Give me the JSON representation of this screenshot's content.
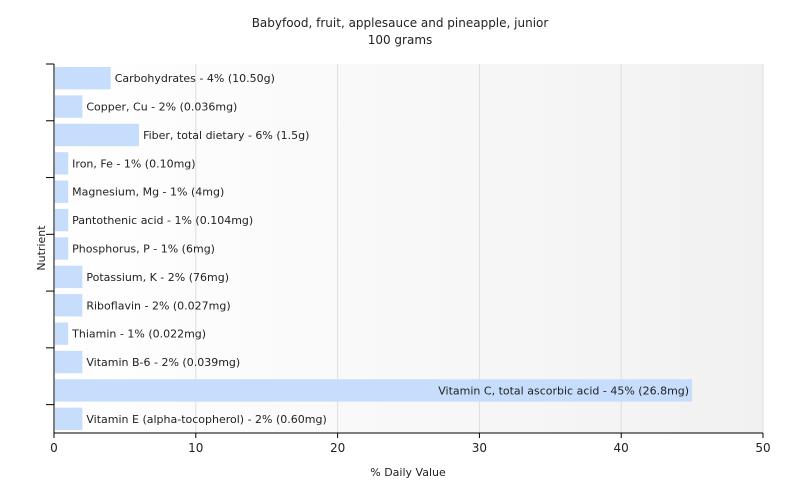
{
  "chart_data": {
    "type": "bar",
    "orientation": "horizontal",
    "title": "Babyfood, fruit, applesauce and pineapple, junior",
    "subtitle": "100 grams",
    "xlabel": "% Daily Value",
    "ylabel": "Nutrient",
    "xlim": [
      0,
      50
    ],
    "xticks": [
      "0",
      "10",
      "20",
      "30",
      "40",
      "50"
    ],
    "grid": true,
    "legend": "none",
    "colors": {
      "bar": "#c6defb",
      "grid": "#dddddd",
      "axis": "#000000",
      "plot_bg_start": "#ffffff",
      "plot_bg_end": "#f1f1f1"
    },
    "categories": [
      "Carbohydrates",
      "Copper, Cu",
      "Fiber, total dietary",
      "Iron, Fe",
      "Magnesium, Mg",
      "Pantothenic acid",
      "Phosphorus, P",
      "Potassium, K",
      "Riboflavin",
      "Thiamin",
      "Vitamin B-6",
      "Vitamin C, total ascorbic acid",
      "Vitamin E (alpha-tocopherol)"
    ],
    "values": [
      4,
      2,
      6,
      1,
      1,
      1,
      1,
      2,
      2,
      1,
      2,
      45,
      2
    ],
    "labels": [
      "Carbohydrates - 4% (10.50g)",
      "Copper, Cu - 2% (0.036mg)",
      "Fiber, total dietary - 6% (1.5g)",
      "Iron, Fe - 1% (0.10mg)",
      "Magnesium, Mg - 1% (4mg)",
      "Pantothenic acid - 1% (0.104mg)",
      "Phosphorus, P - 1% (6mg)",
      "Potassium, K - 2% (76mg)",
      "Riboflavin - 2% (0.027mg)",
      "Thiamin - 1% (0.022mg)",
      "Vitamin B-6 - 2% (0.039mg)",
      "Vitamin C, total ascorbic acid - 45% (26.8mg)",
      "Vitamin E (alpha-tocopherol) - 2% (0.60mg)"
    ]
  }
}
